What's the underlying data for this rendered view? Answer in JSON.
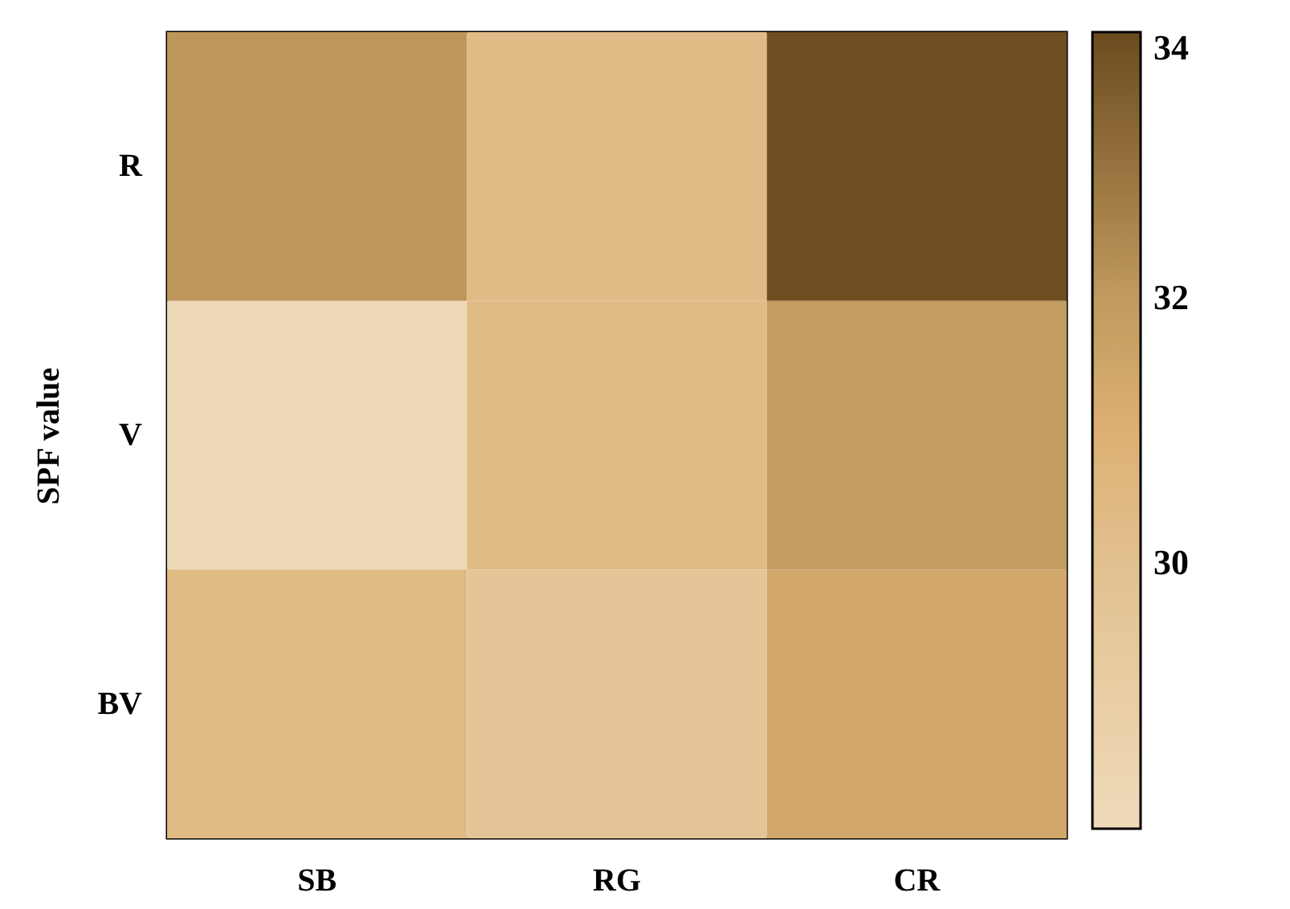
{
  "chart_data": {
    "type": "heatmap",
    "ylabel": "SPF value",
    "categories": [
      "SB",
      "RG",
      "CR"
    ],
    "y_categories": [
      "R",
      "V",
      "BV"
    ],
    "cells": [
      [
        32.1,
        30.3,
        33.9
      ],
      [
        28.1,
        30.3,
        31.9
      ],
      [
        30.4,
        29.6,
        31.4
      ]
    ],
    "clim": [
      28,
      34
    ],
    "cticks": [
      30,
      32,
      34
    ]
  }
}
